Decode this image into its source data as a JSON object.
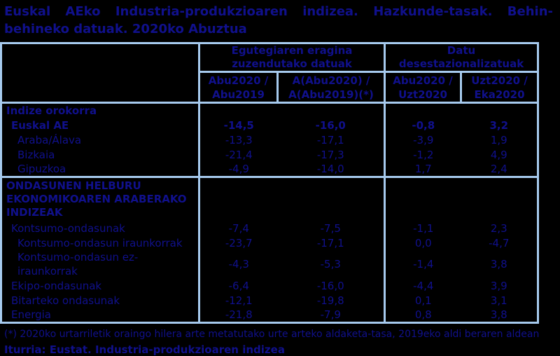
{
  "title": "Euskal AEko Industria-produkzioaren indizea. Hazkunde-tasak. Behin-behineko datuak. 2020ko Abuztua",
  "colors": {
    "background": "#000000",
    "text": "#10108c",
    "table_border": "#a6caee"
  },
  "table": {
    "group_headers": [
      "Egutegiaren eragina\nzuzendutako datuak",
      "Datu\ndesestazionalizatuak"
    ],
    "column_headers": [
      "Abu2020 /\nAbu2019",
      "A(Abu2020) /\nA(Abu2019)(*)",
      "Abu2020 /\nUzt2020",
      "Uzt2020 /\nEka2020"
    ],
    "rows": [
      {
        "label": "Indize orokorra",
        "indent": 0,
        "bold": true,
        "section_start": false,
        "values": [
          "",
          "",
          "",
          ""
        ]
      },
      {
        "label": "Euskal AE",
        "indent": 1,
        "bold": true,
        "section_start": false,
        "values": [
          "-14,5",
          "-16,0",
          "-0,8",
          "3,2"
        ]
      },
      {
        "label": "Araba/Álava",
        "indent": 2,
        "bold": false,
        "section_start": false,
        "values": [
          "-13,3",
          "-17,1",
          "-3,9",
          "1,9"
        ]
      },
      {
        "label": "Bizkaia",
        "indent": 2,
        "bold": false,
        "section_start": false,
        "values": [
          "-21,4",
          "-17,3",
          "-1,2",
          "4,9"
        ]
      },
      {
        "label": "Gipuzkoa",
        "indent": 2,
        "bold": false,
        "section_start": false,
        "values": [
          "-4,9",
          "-14,0",
          "1,7",
          "2,4"
        ]
      },
      {
        "label": "ONDASUNEN HELBURU EKONOMIKOAREN ARABERAKO INDIZEAK",
        "indent": 0,
        "bold": true,
        "section_start": true,
        "values": [
          "",
          "",
          "",
          ""
        ]
      },
      {
        "label": "Kontsumo-ondasunak",
        "indent": 1,
        "bold": false,
        "section_start": false,
        "values": [
          "-7,4",
          "-7,5",
          "-1,1",
          "2,3"
        ]
      },
      {
        "label": "Kontsumo-ondasun iraunkorrak",
        "indent": 2,
        "bold": false,
        "section_start": false,
        "values": [
          "-23,7",
          "-17,1",
          "0,0",
          "-4,7"
        ]
      },
      {
        "label": "Kontsumo-ondasun ez-iraunkorrak",
        "indent": 2,
        "bold": false,
        "section_start": false,
        "values": [
          "-4,3",
          "-5,3",
          "-1,4",
          "3,8"
        ]
      },
      {
        "label": "Ekipo-ondasunak",
        "indent": 1,
        "bold": false,
        "section_start": false,
        "values": [
          "-6,4",
          "-16,0",
          "-4,4",
          "3,9"
        ]
      },
      {
        "label": "Bitarteko ondasunak",
        "indent": 1,
        "bold": false,
        "section_start": false,
        "values": [
          "-12,1",
          "-19,8",
          "0,1",
          "3,1"
        ]
      },
      {
        "label": "Energia",
        "indent": 1,
        "bold": false,
        "section_start": false,
        "values": [
          "-21,8",
          "-7,9",
          "0,8",
          "3,8"
        ]
      }
    ]
  },
  "footnote": "(*) 2020ko urtarriletik oraingo hilera arte metatutako urte arteko aldaketa-tasa, 2019eko aldi beraren aldean",
  "source": "Iturria: Eustat. Industria-produkzioaren indizea"
}
